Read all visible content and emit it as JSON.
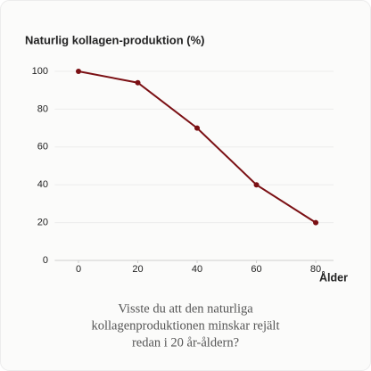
{
  "chart_data": {
    "type": "line",
    "title": "Naturlig kollagen-produktion (%)",
    "x_label": "Ålder",
    "x": [
      0,
      20,
      40,
      60,
      80
    ],
    "series": [
      {
        "name": "Naturlig kollagen-produktion",
        "color": "#7b1014",
        "values": [
          100,
          94,
          70,
          40,
          20
        ]
      }
    ],
    "xlim": [
      -8,
      86
    ],
    "xticks": [
      0,
      20,
      40,
      60,
      80
    ],
    "ylim": [
      0,
      100
    ],
    "yticks": [
      0,
      20,
      40,
      60,
      80,
      100
    ],
    "grid": true,
    "caption": [
      "Visste du att den naturliga",
      "kollagenproduktionen minskar rejält",
      "redan i 20 år-åldern?"
    ]
  }
}
